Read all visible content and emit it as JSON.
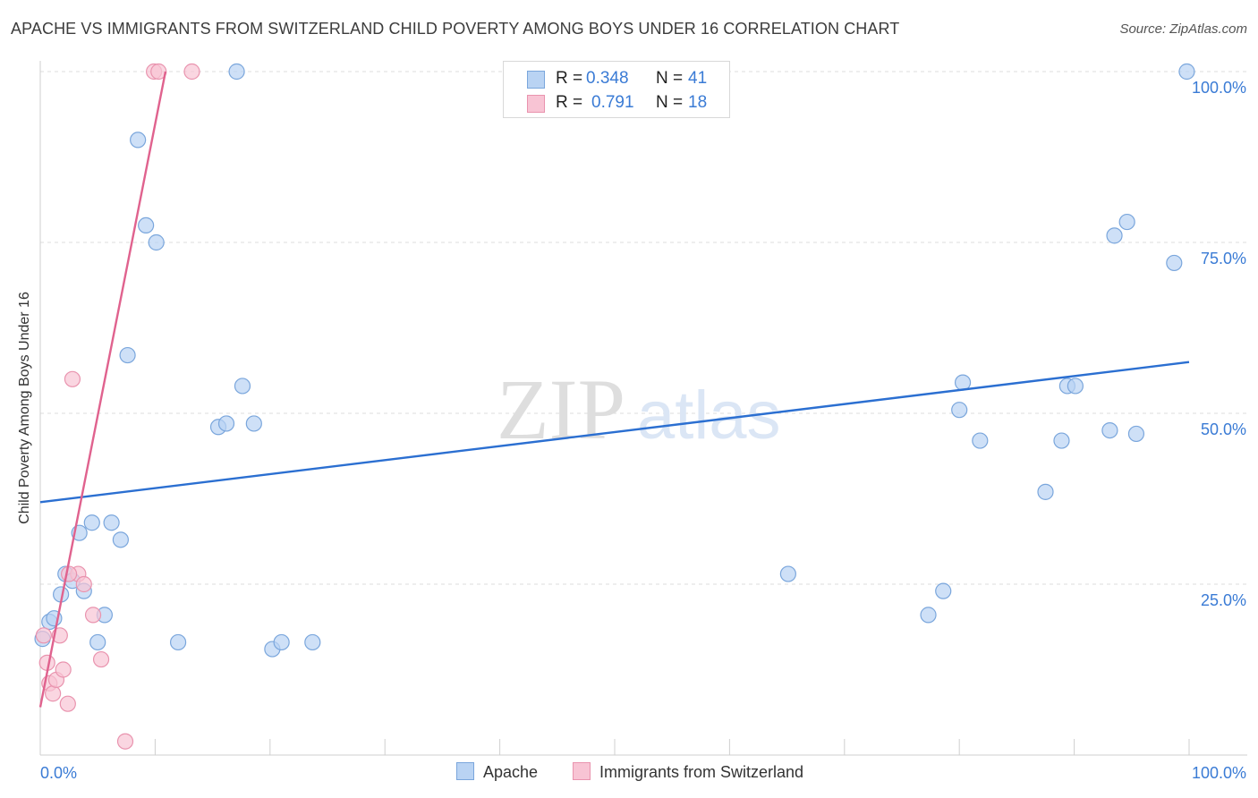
{
  "title": "APACHE VS IMMIGRANTS FROM SWITZERLAND CHILD POVERTY AMONG BOYS UNDER 16 CORRELATION CHART",
  "source": "Source: ZipAtlas.com",
  "watermark": {
    "zip": "ZIP",
    "atlas": "atlas"
  },
  "legend_top": [
    {
      "r_label": "R =",
      "r_value": "0.348",
      "n_label": "N =",
      "n_value": "41"
    },
    {
      "r_label": "R =",
      "r_value": "0.791",
      "n_label": "N =",
      "n_value": "18"
    }
  ],
  "colors": {
    "apache_fill": "#b9d3f3",
    "apache_stroke": "#7aa6dc",
    "apache_line": "#2b6fd1",
    "swiss_fill": "#f8c4d4",
    "swiss_stroke": "#e993ae",
    "swiss_line": "#e0628e",
    "axis_text": "#3a7bd5",
    "grid": "#dddddd"
  },
  "chart_data": {
    "type": "scatter",
    "title": "APACHE VS IMMIGRANTS FROM SWITZERLAND CHILD POVERTY AMONG BOYS UNDER 16 CORRELATION CHART",
    "xlabel": "",
    "ylabel": "Child Poverty Among Boys Under 16",
    "xlim": [
      0,
      100
    ],
    "ylim": [
      0,
      100
    ],
    "x_tick_labels": [
      "0.0%",
      "100.0%"
    ],
    "y_tick_labels": [
      "25.0%",
      "50.0%",
      "75.0%",
      "100.0%"
    ],
    "y_ticks": [
      25,
      50,
      75,
      100
    ],
    "grid": true,
    "legend_placement": "bottom",
    "series": [
      {
        "name": "Apache",
        "x": [
          0.2,
          0.8,
          1.2,
          1.8,
          2.2,
          2.8,
          3.4,
          3.8,
          4.5,
          5.0,
          5.6,
          6.2,
          7.0,
          7.6,
          8.5,
          9.2,
          10.1,
          12.0,
          15.5,
          17.6,
          18.6,
          20.2,
          21.0,
          23.7,
          16.2,
          17.1,
          65.1,
          77.3,
          78.6,
          80.0,
          80.3,
          81.8,
          87.5,
          88.9,
          89.4,
          90.1,
          93.1,
          93.5,
          94.6,
          95.4,
          98.7
        ],
        "y": [
          17,
          19.5,
          20,
          23.5,
          26.5,
          25.5,
          32.5,
          24,
          34,
          16.5,
          20.5,
          34,
          31.5,
          58.5,
          90,
          77.5,
          75,
          16.5,
          48,
          54,
          48.5,
          15.5,
          16.5,
          16.5,
          48.5,
          100,
          26.5,
          20.5,
          24,
          50.5,
          54.5,
          46,
          38.5,
          46,
          54,
          54,
          47.5,
          76,
          78,
          47,
          72
        ],
        "x2": [
          99.8
        ],
        "y2": [
          100
        ]
      },
      {
        "name": "Immigrants from Switzerland",
        "x": [
          0.3,
          0.6,
          0.8,
          1.1,
          1.4,
          1.7,
          2.0,
          2.4,
          2.8,
          3.3,
          3.8,
          4.6,
          5.3,
          7.4,
          9.9,
          10.3,
          13.2
        ],
        "y": [
          17.5,
          13.5,
          10.5,
          9,
          11,
          17.5,
          12.5,
          7.5,
          55,
          26.5,
          25,
          20.5,
          14,
          2,
          100,
          100,
          100
        ],
        "x2": [
          2.5
        ],
        "y2": [
          26.5
        ]
      }
    ],
    "trend_lines": [
      {
        "series": "Apache",
        "x": [
          0,
          100
        ],
        "y": [
          37,
          57.5
        ]
      },
      {
        "series": "Immigrants from Switzerland",
        "x": [
          0,
          10.9
        ],
        "y": [
          7,
          100
        ]
      }
    ]
  },
  "legend_bottom": [
    "Apache",
    "Immigrants from Switzerland"
  ]
}
